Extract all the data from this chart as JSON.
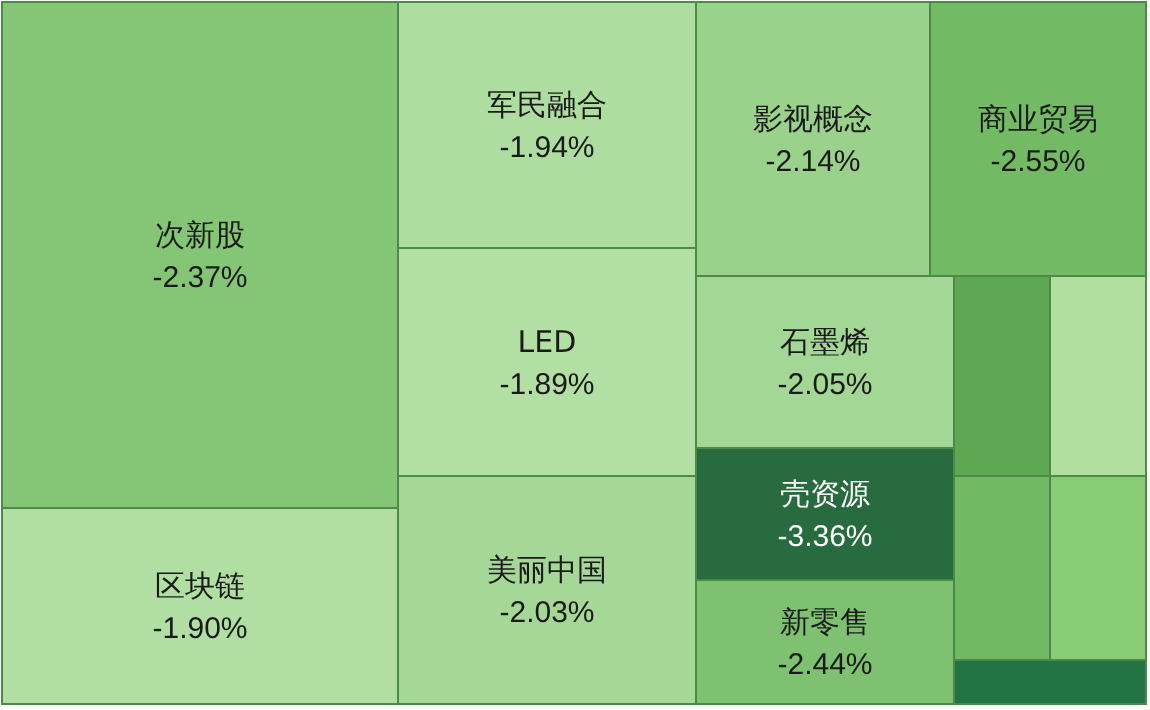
{
  "chart_data": {
    "type": "other",
    "categories": [
      "次新股",
      "区块链",
      "军民融合",
      "LED",
      "美丽中国",
      "影视概念",
      "商业贸易",
      "石墨烯",
      "壳资源",
      "新零售",
      null,
      null,
      null,
      null,
      null
    ],
    "values": [
      -2.37,
      -1.9,
      -1.94,
      -1.89,
      -2.03,
      -2.14,
      -2.55,
      -2.05,
      -3.36,
      -2.44,
      null,
      null,
      null,
      null,
      null
    ],
    "value_labels": [
      "-2.37%",
      "-1.90%",
      "-1.94%",
      "-1.89%",
      "-2.03%",
      "-2.14%",
      "-2.55%",
      "-2.05%",
      "-3.36%",
      "-2.44%",
      null,
      null,
      null,
      null,
      null
    ],
    "colors": [
      null,
      null,
      null,
      null,
      null,
      null,
      null,
      null,
      null,
      null,
      "#5ea853",
      "#b0dfa0",
      "#72b963",
      "#88cc76",
      "#237444"
    ]
  }
}
